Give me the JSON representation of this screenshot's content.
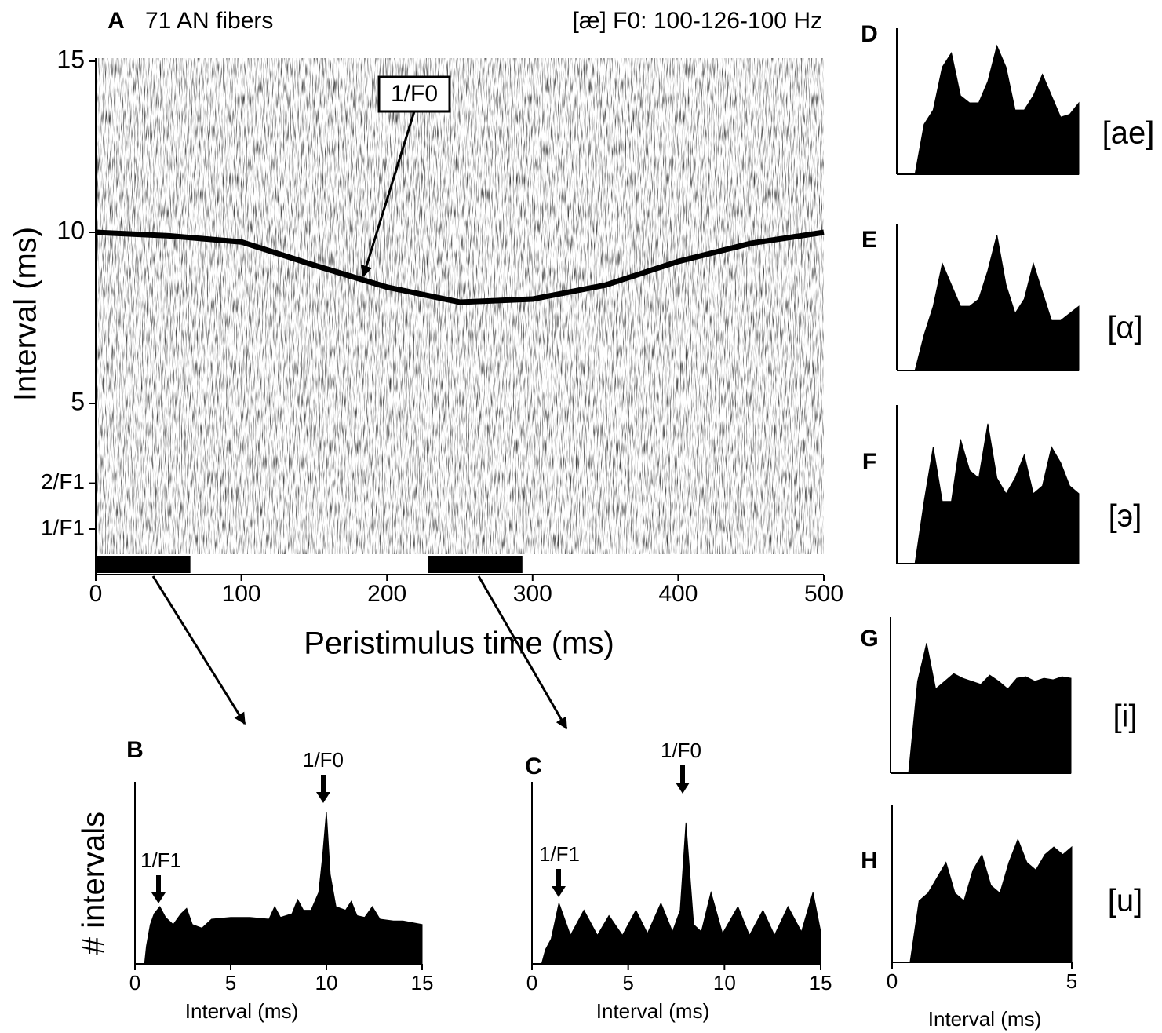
{
  "chart_data": [
    {
      "type": "line",
      "panel": "A",
      "title": "71 AN fibers",
      "subtitle": "[æ] F0: 100-126-100 Hz",
      "x_label": "Peristimulus time (ms)",
      "y_label": "Interval (ms)",
      "xlim": [
        0,
        500
      ],
      "xticks": [
        0,
        100,
        200,
        300,
        400,
        500
      ],
      "ylim": [
        0,
        15
      ],
      "yticks": [
        {
          "value": 1.33,
          "label": "1/F1"
        },
        {
          "value": 2.67,
          "label": "2/F1"
        },
        5,
        10,
        15
      ],
      "x": [
        0,
        50,
        100,
        150,
        200,
        250,
        300,
        350,
        400,
        450,
        500
      ],
      "values": [
        10,
        9.9,
        9.72,
        9.04,
        8.4,
        7.96,
        8.05,
        8.46,
        9.15,
        9.68,
        10
      ],
      "color": "#000000",
      "stimulus_windows": [
        [
          0,
          65
        ],
        [
          228,
          293
        ]
      ],
      "annotations": [
        "1/F0"
      ]
    },
    {
      "type": "area",
      "panel": "B",
      "x_label": "Interval (ms)",
      "y_label": "# intervals",
      "xlim": [
        0,
        15
      ],
      "xticks": [
        0,
        5,
        10,
        15
      ],
      "ylim": [
        0,
        100
      ],
      "x": [
        0,
        0.5,
        0.6,
        0.8,
        1.0,
        1.3,
        1.6,
        2.0,
        2.4,
        2.7,
        3.0,
        3.5,
        4,
        5,
        6,
        7,
        7.3,
        7.6,
        8.2,
        8.5,
        8.8,
        9.2,
        9.6,
        9.8,
        10.0,
        10.2,
        10.5,
        11,
        11.3,
        11.6,
        12,
        12.4,
        12.8,
        13.5,
        14,
        15
      ],
      "values": [
        0,
        0,
        10,
        22,
        28,
        32,
        26,
        22,
        28,
        31,
        22,
        20,
        25,
        26,
        26,
        25,
        32,
        26,
        28,
        36,
        30,
        30,
        40,
        60,
        85,
        50,
        32,
        30,
        35,
        27,
        26,
        32,
        25,
        24,
        24,
        22
      ],
      "color": "#000000",
      "annotations": [
        "1/F1",
        "1/F0"
      ]
    },
    {
      "type": "area",
      "panel": "C",
      "x_label": "Interval (ms)",
      "xlim": [
        0,
        15
      ],
      "xticks": [
        0,
        5,
        10,
        15
      ],
      "ylim": [
        0,
        100
      ],
      "x": [
        0,
        0.5,
        0.7,
        1.0,
        1.4,
        2.0,
        2.7,
        3.4,
        4.0,
        4.7,
        5.4,
        6.0,
        6.7,
        7.3,
        7.7,
        8.0,
        8.4,
        8.8,
        9.3,
        9.9,
        10.7,
        11.3,
        12.0,
        12.6,
        13.3,
        14.0,
        14.6,
        15
      ],
      "values": [
        0,
        0,
        8,
        14,
        34,
        16,
        30,
        16,
        27,
        16,
        30,
        17,
        34,
        18,
        30,
        79,
        22,
        18,
        40,
        17,
        32,
        16,
        30,
        16,
        32,
        18,
        40,
        18
      ],
      "color": "#000000",
      "annotations": [
        "1/F1",
        "1/F0"
      ]
    },
    {
      "type": "area",
      "panel": "D",
      "label": "[ae]",
      "xlim": [
        0,
        5
      ],
      "ylim": [
        0,
        100
      ],
      "x": [
        0,
        0.25,
        0.5,
        0.75,
        1.0,
        1.25,
        1.5,
        1.75,
        2.0,
        2.25,
        2.5,
        2.75,
        3.0,
        3.25,
        3.5,
        3.75,
        4.0,
        4.25,
        4.5,
        4.75,
        5.0
      ],
      "values": [
        0,
        0,
        0,
        35,
        45,
        75,
        85,
        55,
        50,
        50,
        65,
        90,
        75,
        45,
        45,
        55,
        70,
        55,
        40,
        42,
        50
      ],
      "color": "#000000"
    },
    {
      "type": "area",
      "panel": "E",
      "label": "[α]",
      "xlim": [
        0,
        5
      ],
      "ylim": [
        0,
        100
      ],
      "x": [
        0,
        0.25,
        0.5,
        0.75,
        1.0,
        1.25,
        1.5,
        1.75,
        2.0,
        2.25,
        2.5,
        2.75,
        3.0,
        3.25,
        3.5,
        3.75,
        4.0,
        4.25,
        4.5,
        4.75,
        5.0
      ],
      "values": [
        0,
        0,
        0,
        25,
        45,
        75,
        60,
        45,
        45,
        50,
        70,
        95,
        60,
        40,
        50,
        75,
        55,
        35,
        35,
        40,
        45
      ],
      "color": "#000000"
    },
    {
      "type": "area",
      "panel": "F",
      "label": "[э]",
      "xlim": [
        0,
        5
      ],
      "ylim": [
        0,
        100
      ],
      "x": [
        0,
        0.25,
        0.5,
        0.75,
        1.0,
        1.25,
        1.5,
        1.75,
        2.0,
        2.25,
        2.5,
        2.75,
        3.0,
        3.25,
        3.5,
        3.75,
        4.0,
        4.25,
        4.5,
        4.75,
        5.0
      ],
      "values": [
        0,
        0,
        0,
        40,
        75,
        40,
        40,
        80,
        60,
        55,
        90,
        55,
        45,
        55,
        70,
        45,
        50,
        75,
        65,
        50,
        45
      ],
      "color": "#000000"
    },
    {
      "type": "area",
      "panel": "G",
      "label": "[i]",
      "xlim": [
        0,
        5
      ],
      "ylim": [
        0,
        100
      ],
      "x": [
        0,
        0.25,
        0.5,
        0.75,
        1.0,
        1.25,
        1.5,
        1.75,
        2.0,
        2.25,
        2.5,
        2.75,
        3.0,
        3.25,
        3.5,
        3.75,
        4.0,
        4.25,
        4.5,
        4.75,
        5.0
      ],
      "values": [
        0,
        0,
        0,
        60,
        85,
        55,
        60,
        65,
        62,
        60,
        58,
        64,
        60,
        55,
        62,
        63,
        60,
        62,
        61,
        63,
        62
      ],
      "color": "#000000"
    },
    {
      "type": "area",
      "panel": "H",
      "label": "[u]",
      "x_label": "Interval (ms)",
      "xlim": [
        0,
        5
      ],
      "xticks": [
        0,
        5
      ],
      "ylim": [
        0,
        100
      ],
      "x": [
        0,
        0.25,
        0.5,
        0.75,
        1.0,
        1.25,
        1.5,
        1.75,
        2.0,
        2.25,
        2.5,
        2.75,
        3.0,
        3.25,
        3.5,
        3.75,
        4.0,
        4.25,
        4.5,
        4.75,
        5.0
      ],
      "values": [
        0,
        0,
        0,
        40,
        45,
        55,
        65,
        45,
        40,
        60,
        70,
        50,
        45,
        65,
        80,
        65,
        60,
        70,
        75,
        70,
        75
      ],
      "color": "#000000"
    }
  ]
}
